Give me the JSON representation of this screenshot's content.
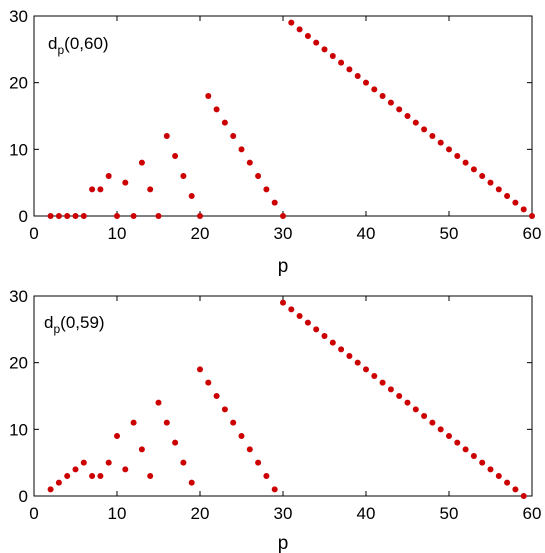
{
  "chart_data": [
    {
      "type": "scatter",
      "annotation": {
        "main": "d",
        "sub": "p",
        "args": "(0,60)"
      },
      "xlabel": "p",
      "ylabel": "",
      "xlim": [
        0,
        60
      ],
      "ylim": [
        0,
        30
      ],
      "xticks": [
        0,
        10,
        20,
        30,
        40,
        50,
        60
      ],
      "yticks": [
        0,
        10,
        20,
        30
      ],
      "grid": false,
      "marker_color": "#cc0000",
      "series": [
        {
          "x": [
            2,
            3,
            4,
            5,
            6,
            7,
            8,
            9,
            10,
            11,
            12,
            13,
            14,
            15,
            16,
            17,
            18,
            19,
            20,
            21,
            22,
            23,
            24,
            25,
            26,
            27,
            28,
            29,
            30,
            31,
            32,
            33,
            34,
            35,
            36,
            37,
            38,
            39,
            40,
            41,
            42,
            43,
            44,
            45,
            46,
            47,
            48,
            49,
            50,
            51,
            52,
            53,
            54,
            55,
            56,
            57,
            58,
            59,
            60
          ],
          "y": [
            0,
            0,
            0,
            0,
            0,
            4,
            4,
            6,
            0,
            5,
            0,
            8,
            4,
            0,
            12,
            9,
            6,
            3,
            0,
            18,
            16,
            14,
            12,
            10,
            8,
            6,
            4,
            2,
            0,
            29,
            28,
            27,
            26,
            25,
            24,
            23,
            22,
            21,
            20,
            19,
            18,
            17,
            16,
            15,
            14,
            13,
            12,
            11,
            10,
            9,
            8,
            7,
            6,
            5,
            4,
            3,
            2,
            1,
            0
          ]
        }
      ]
    },
    {
      "type": "scatter",
      "annotation": {
        "main": "d",
        "sub": "p",
        "args": "(0,59)"
      },
      "xlabel": "p",
      "ylabel": "",
      "xlim": [
        0,
        60
      ],
      "ylim": [
        0,
        30
      ],
      "xticks": [
        0,
        10,
        20,
        30,
        40,
        50,
        60
      ],
      "yticks": [
        0,
        10,
        20,
        30
      ],
      "grid": false,
      "marker_color": "#cc0000",
      "series": [
        {
          "x": [
            2,
            3,
            4,
            5,
            6,
            7,
            8,
            9,
            10,
            11,
            12,
            13,
            14,
            15,
            16,
            17,
            18,
            19,
            20,
            21,
            22,
            23,
            24,
            25,
            26,
            27,
            28,
            29,
            30,
            31,
            32,
            33,
            34,
            35,
            36,
            37,
            38,
            39,
            40,
            41,
            42,
            43,
            44,
            45,
            46,
            47,
            48,
            49,
            50,
            51,
            52,
            53,
            54,
            55,
            56,
            57,
            58,
            59
          ],
          "y": [
            1,
            2,
            3,
            4,
            5,
            3,
            3,
            5,
            9,
            4,
            11,
            7,
            3,
            14,
            11,
            8,
            5,
            2,
            19,
            17,
            15,
            13,
            11,
            9,
            7,
            5,
            3,
            1,
            29,
            28,
            27,
            26,
            25,
            24,
            23,
            22,
            21,
            20,
            19,
            18,
            17,
            16,
            15,
            14,
            13,
            12,
            11,
            10,
            9,
            8,
            7,
            6,
            5,
            4,
            3,
            2,
            1,
            0
          ]
        }
      ]
    }
  ]
}
